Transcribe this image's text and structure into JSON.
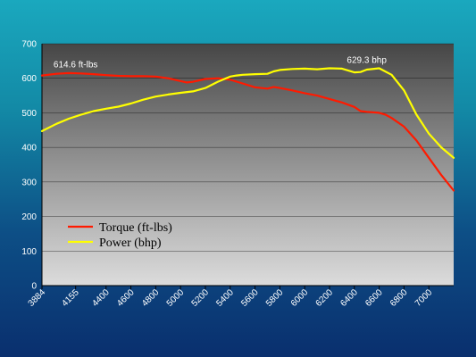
{
  "chart_data": {
    "type": "line",
    "title": "",
    "xlabel": "",
    "ylabel": "",
    "ylim": [
      0,
      700
    ],
    "yticks": [
      0,
      100,
      200,
      300,
      400,
      500,
      600,
      700
    ],
    "xlim": [
      3884,
      7200
    ],
    "xticks": [
      "3884",
      "4155",
      "4400",
      "4600",
      "4800",
      "5000",
      "5200",
      "5400",
      "5600",
      "5800",
      "6000",
      "6200",
      "6400",
      "6600",
      "6800",
      "7000"
    ],
    "grid": true,
    "legend": "lower-left",
    "series": [
      {
        "name": "Torque (ft-lbs)",
        "color": "#ff1a00",
        "points": [
          [
            3884,
            608
          ],
          [
            4000,
            613
          ],
          [
            4100,
            615
          ],
          [
            4200,
            614
          ],
          [
            4300,
            612
          ],
          [
            4400,
            609
          ],
          [
            4500,
            607
          ],
          [
            4600,
            606
          ],
          [
            4700,
            606
          ],
          [
            4800,
            605
          ],
          [
            4900,
            600
          ],
          [
            5000,
            592
          ],
          [
            5050,
            588
          ],
          [
            5100,
            590
          ],
          [
            5200,
            598
          ],
          [
            5300,
            600
          ],
          [
            5400,
            596
          ],
          [
            5500,
            585
          ],
          [
            5600,
            574
          ],
          [
            5700,
            570
          ],
          [
            5750,
            575
          ],
          [
            5800,
            572
          ],
          [
            5900,
            565
          ],
          [
            6000,
            557
          ],
          [
            6100,
            550
          ],
          [
            6200,
            540
          ],
          [
            6300,
            530
          ],
          [
            6400,
            517
          ],
          [
            6450,
            505
          ],
          [
            6500,
            503
          ],
          [
            6600,
            500
          ],
          [
            6650,
            495
          ],
          [
            6700,
            485
          ],
          [
            6800,
            460
          ],
          [
            6900,
            420
          ],
          [
            7000,
            370
          ],
          [
            7100,
            320
          ],
          [
            7200,
            275
          ]
        ]
      },
      {
        "name": "Power (bhp)",
        "color": "#ffff00",
        "points": [
          [
            3884,
            447
          ],
          [
            4000,
            468
          ],
          [
            4100,
            483
          ],
          [
            4200,
            495
          ],
          [
            4300,
            505
          ],
          [
            4400,
            512
          ],
          [
            4500,
            518
          ],
          [
            4600,
            527
          ],
          [
            4700,
            538
          ],
          [
            4800,
            547
          ],
          [
            4900,
            553
          ],
          [
            5000,
            558
          ],
          [
            5100,
            562
          ],
          [
            5200,
            572
          ],
          [
            5300,
            590
          ],
          [
            5400,
            605
          ],
          [
            5450,
            608
          ],
          [
            5500,
            610
          ],
          [
            5600,
            612
          ],
          [
            5700,
            613
          ],
          [
            5750,
            620
          ],
          [
            5800,
            624
          ],
          [
            5900,
            627
          ],
          [
            6000,
            628
          ],
          [
            6100,
            626
          ],
          [
            6200,
            629
          ],
          [
            6300,
            628
          ],
          [
            6400,
            617
          ],
          [
            6450,
            618
          ],
          [
            6500,
            625
          ],
          [
            6600,
            629
          ],
          [
            6700,
            610
          ],
          [
            6800,
            565
          ],
          [
            6900,
            495
          ],
          [
            7000,
            440
          ],
          [
            7100,
            400
          ],
          [
            7200,
            370
          ]
        ]
      }
    ],
    "annotations": [
      {
        "text": "614.6 ft-lbs",
        "x": 4155,
        "y": 632
      },
      {
        "text": "629.3 bhp",
        "x": 6500,
        "y": 645
      }
    ]
  }
}
